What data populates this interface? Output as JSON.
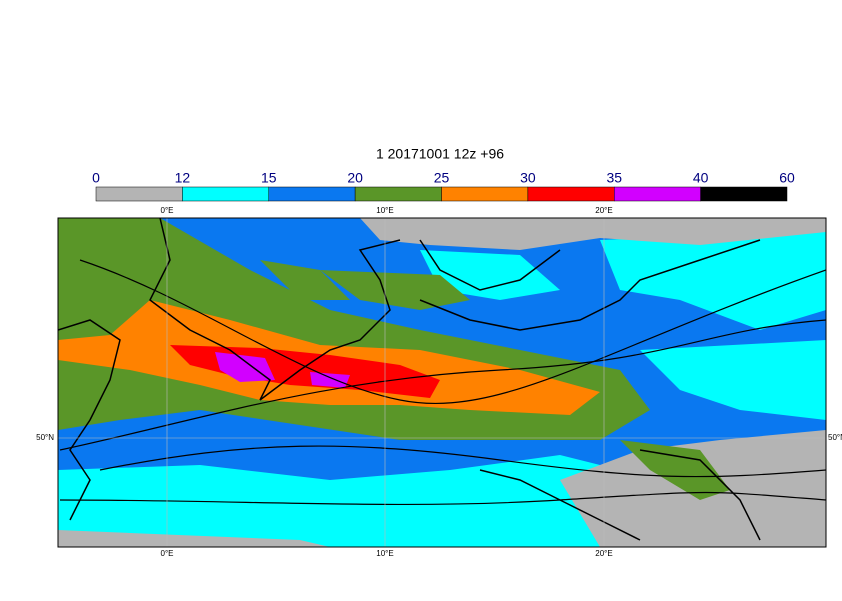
{
  "title": "1 20171001 12z +96",
  "colorbar": {
    "levels": [
      0,
      12,
      15,
      20,
      25,
      30,
      35,
      40,
      60
    ],
    "colors": [
      "#b4b4b4",
      "#00ffff",
      "#0a78f0",
      "#5a9628",
      "#ff8200",
      "#ff0000",
      "#d200ff",
      "#000000"
    ]
  },
  "map": {
    "lon_labels": [
      "0°E",
      "10°E",
      "20°E"
    ],
    "lat_labels": [
      "50°N"
    ]
  }
}
